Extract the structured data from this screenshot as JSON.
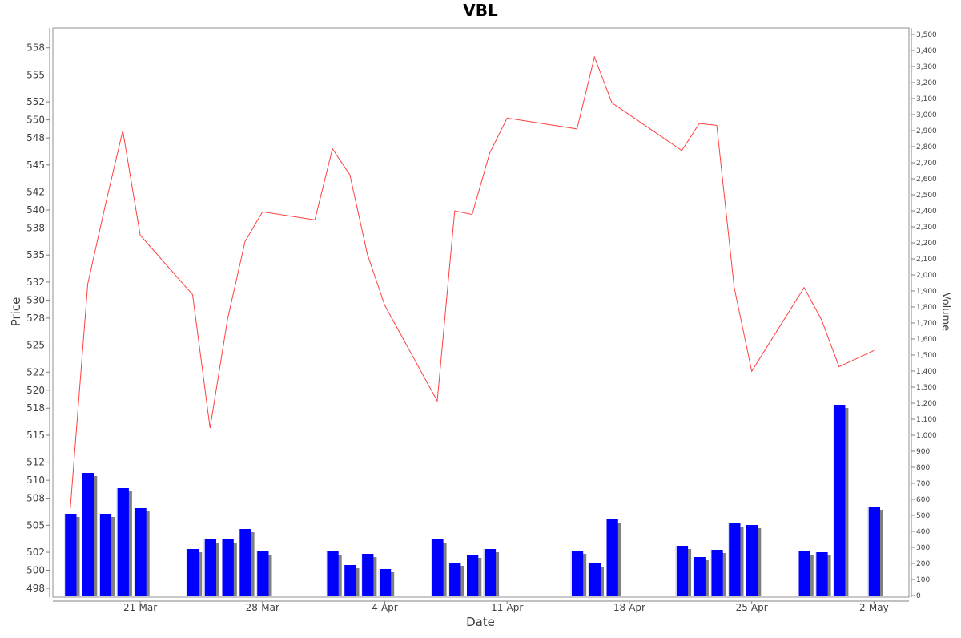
{
  "chart_data": {
    "type": "line",
    "title": "VBL",
    "xlabel": "Date",
    "ylabel": "Price",
    "y2label": "Volume",
    "ylim": [
      497.2,
      560.2
    ],
    "y2lim": [
      0,
      3540
    ],
    "xlim": [
      "2025-03-16",
      "2025-05-04"
    ],
    "y_ticks": [
      498,
      500,
      502,
      505,
      508,
      510,
      512,
      515,
      518,
      520,
      522,
      525,
      528,
      530,
      532,
      535,
      538,
      540,
      542,
      545,
      548,
      550,
      552,
      555,
      558
    ],
    "y2_ticks": [
      "0",
      "100",
      "200",
      "300",
      "400",
      "500",
      "600",
      "700",
      "800",
      "900",
      "1,000",
      "1,100",
      "1,200",
      "1,300",
      "1,400",
      "1,500",
      "1,600",
      "1,700",
      "1,800",
      "1,900",
      "2,000",
      "2,100",
      "2,200",
      "2,300",
      "2,400",
      "2,500",
      "2,600",
      "2,700",
      "2,800",
      "2,900",
      "3,000",
      "3,100",
      "3,200",
      "3,300",
      "3,400",
      "3,500"
    ],
    "x_ticks": [
      {
        "label": "21-Mar",
        "date": "2025-03-21"
      },
      {
        "label": "28-Mar",
        "date": "2025-03-28"
      },
      {
        "label": "4-Apr",
        "date": "2025-04-04"
      },
      {
        "label": "11-Apr",
        "date": "2025-04-11"
      },
      {
        "label": "18-Apr",
        "date": "2025-04-18"
      },
      {
        "label": "25-Apr",
        "date": "2025-04-25"
      },
      {
        "label": "2-May",
        "date": "2025-05-02"
      }
    ],
    "grid": false,
    "colors": {
      "price_line": "#ff4040",
      "volume_bar": "#0000ff",
      "volume_shadow": "#808080",
      "axis": "#808080"
    },
    "series": [
      {
        "type": "line",
        "axis": "left",
        "x": [
          "2025-03-17",
          "2025-03-18",
          "2025-03-19",
          "2025-03-20",
          "2025-03-21",
          "2025-03-24",
          "2025-03-25",
          "2025-03-26",
          "2025-03-27",
          "2025-03-28",
          "2025-03-31",
          "2025-04-01",
          "2025-04-02",
          "2025-04-03",
          "2025-04-04",
          "2025-04-07",
          "2025-04-08",
          "2025-04-09",
          "2025-04-10",
          "2025-04-11",
          "2025-04-15",
          "2025-04-16",
          "2025-04-17",
          "2025-04-21",
          "2025-04-22",
          "2025-04-23",
          "2025-04-24",
          "2025-04-25",
          "2025-04-28",
          "2025-04-29",
          "2025-04-30",
          "2025-05-02"
        ],
        "values": [
          506.9,
          531.8,
          540.5,
          548.8,
          537.2,
          530.6,
          515.8,
          527.9,
          536.5,
          539.8,
          538.9,
          546.8,
          543.9,
          535.1,
          529.4,
          518.8,
          539.9,
          539.5,
          546.3,
          550.2,
          549.0,
          557.0,
          551.9,
          546.6,
          549.6,
          549.4,
          531.4,
          522.1,
          531.4,
          527.8,
          522.6,
          524.4
        ]
      },
      {
        "type": "bar",
        "axis": "right",
        "x": [
          "2025-03-17",
          "2025-03-18",
          "2025-03-19",
          "2025-03-20",
          "2025-03-21",
          "2025-03-24",
          "2025-03-25",
          "2025-03-26",
          "2025-03-27",
          "2025-03-28",
          "2025-04-01",
          "2025-04-02",
          "2025-04-03",
          "2025-04-04",
          "2025-04-07",
          "2025-04-08",
          "2025-04-09",
          "2025-04-10",
          "2025-04-15",
          "2025-04-16",
          "2025-04-17",
          "2025-04-21",
          "2025-04-22",
          "2025-04-23",
          "2025-04-24",
          "2025-04-25",
          "2025-04-28",
          "2025-04-29",
          "2025-04-30",
          "2025-05-02"
        ],
        "values": [
          510,
          765,
          510,
          670,
          545,
          290,
          350,
          350,
          415,
          275,
          275,
          190,
          260,
          165,
          350,
          205,
          255,
          290,
          280,
          200,
          475,
          310,
          240,
          285,
          450,
          440,
          275,
          270,
          1190,
          555
        ]
      }
    ]
  }
}
